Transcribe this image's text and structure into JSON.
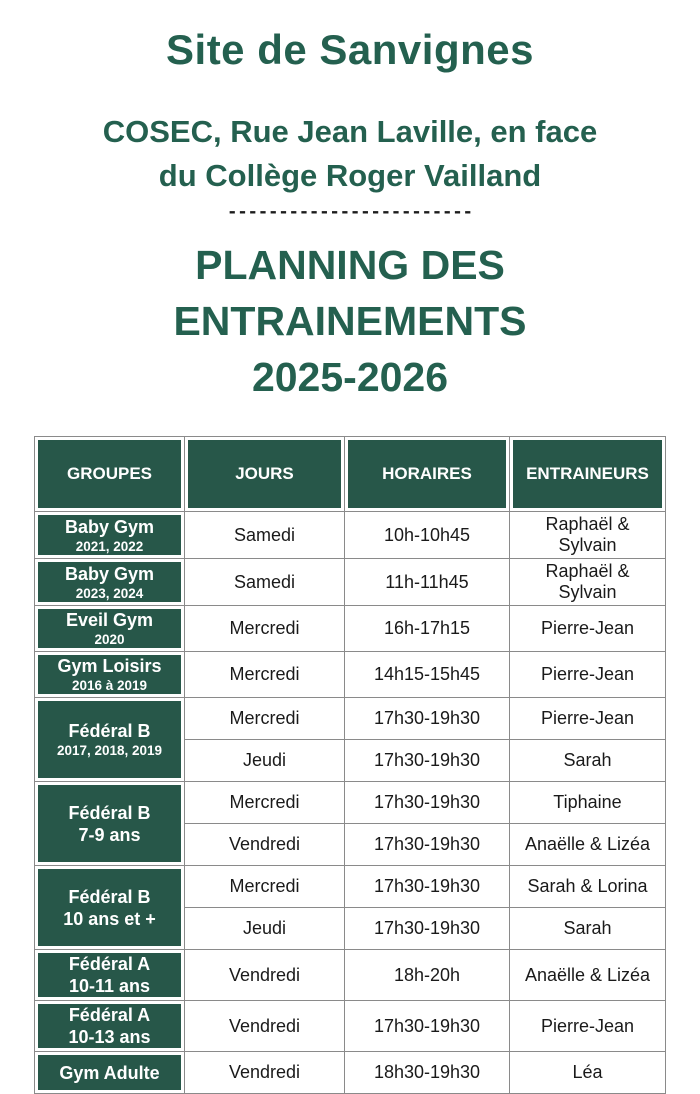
{
  "header": {
    "site_title": "Site de Sanvignes",
    "address_line1": "COSEC, Rue Jean Laville, en face",
    "address_line2": "du Collège Roger Vailland",
    "divider": "------------------------",
    "planning_line1": "PLANNING DES",
    "planning_line2": "ENTRAINEMENTS",
    "planning_line3": "2025-2026"
  },
  "colors": {
    "title_green": "#24604f",
    "table_green": "#275749",
    "border_gray": "#8a8a8a",
    "text_black": "#1a1a1a",
    "header_text": "#ffffff"
  },
  "table": {
    "headers": [
      "GROUPES",
      "JOURS",
      "HORAIRES",
      "ENTRAINEURS"
    ],
    "groups": [
      {
        "name": "Baby Gym",
        "sub": "2021, 2022",
        "sub_small": true,
        "tall": false,
        "sessions": [
          {
            "day": "Samedi",
            "time": "10h-10h45",
            "trainers": "Raphaël & Sylvain"
          }
        ]
      },
      {
        "name": "Baby Gym",
        "sub": "2023, 2024",
        "sub_small": true,
        "tall": false,
        "sessions": [
          {
            "day": "Samedi",
            "time": "11h-11h45",
            "trainers": "Raphaël & Sylvain"
          }
        ]
      },
      {
        "name": "Eveil Gym",
        "sub": "2020",
        "sub_small": true,
        "tall": false,
        "sessions": [
          {
            "day": "Mercredi",
            "time": "16h-17h15",
            "trainers": "Pierre-Jean"
          }
        ]
      },
      {
        "name": "Gym Loisirs",
        "sub": "2016 à 2019",
        "sub_small": true,
        "tall": false,
        "sessions": [
          {
            "day": "Mercredi",
            "time": "14h15-15h45",
            "trainers": "Pierre-Jean"
          }
        ]
      },
      {
        "name": "Fédéral B",
        "sub": "2017, 2018, 2019",
        "sub_small": true,
        "tall": false,
        "sessions": [
          {
            "day": "Mercredi",
            "time": "17h30-19h30",
            "trainers": "Pierre-Jean"
          },
          {
            "day": "Jeudi",
            "time": "17h30-19h30",
            "trainers": "Sarah"
          }
        ]
      },
      {
        "name": "Fédéral B",
        "sub": "7-9 ans",
        "sub_small": false,
        "tall": false,
        "sessions": [
          {
            "day": "Mercredi",
            "time": "17h30-19h30",
            "trainers": "Tiphaine"
          },
          {
            "day": "Vendredi",
            "time": "17h30-19h30",
            "trainers": "Anaëlle & Lizéa"
          }
        ]
      },
      {
        "name": "Fédéral B",
        "sub": "10 ans et +",
        "sub_small": false,
        "tall": false,
        "sessions": [
          {
            "day": "Mercredi",
            "time": "17h30-19h30",
            "trainers": "Sarah & Lorina"
          },
          {
            "day": "Jeudi",
            "time": "17h30-19h30",
            "trainers": "Sarah"
          }
        ]
      },
      {
        "name": "Fédéral A",
        "sub": "10-11 ans",
        "sub_small": false,
        "tall": true,
        "sessions": [
          {
            "day": "Vendredi",
            "time": "18h-20h",
            "trainers": "Anaëlle & Lizéa"
          }
        ]
      },
      {
        "name": "Fédéral A",
        "sub": "10-13 ans",
        "sub_small": false,
        "tall": true,
        "sessions": [
          {
            "day": "Vendredi",
            "time": "17h30-19h30",
            "trainers": "Pierre-Jean"
          }
        ]
      },
      {
        "name": "Gym Adulte",
        "sub": "",
        "sub_small": false,
        "tall": false,
        "sessions": [
          {
            "day": "Vendredi",
            "time": "18h30-19h30",
            "trainers": "Léa"
          }
        ]
      }
    ]
  }
}
